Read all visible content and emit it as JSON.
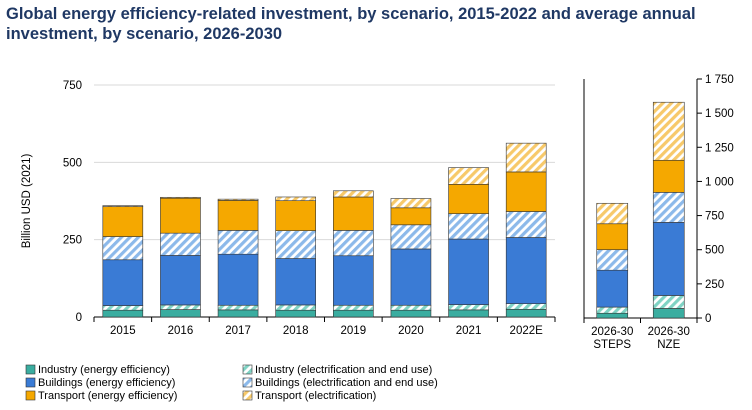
{
  "title": "Global energy efficiency-related investment, by scenario, 2015-2022 and average annual investment, by scenario, 2026-2030",
  "colors": {
    "industry_ee": "#3aada0",
    "industry_elec": "#7fd3c4",
    "buildings_ee": "#3a7bd5",
    "buildings_elec": "#8cb9ea",
    "transport_ee": "#f5a800",
    "transport_elec": "#f7c96a"
  },
  "chart_data": [
    {
      "type": "bar",
      "stacked": true,
      "ylabel": "Billion USD (2021)",
      "ylim": [
        0,
        750
      ],
      "yticks": [
        "0",
        "250",
        "500",
        "750"
      ],
      "grid": true,
      "categories": [
        "2015",
        "2016",
        "2017",
        "2018",
        "2019",
        "2020",
        "2021",
        "2022E"
      ],
      "series": [
        {
          "name": "Industry (energy efficiency)",
          "key": "industry_ee",
          "pattern": "solid",
          "values": [
            22,
            24,
            23,
            22,
            22,
            22,
            23,
            25
          ]
        },
        {
          "name": "Industry (electrification and end use)",
          "key": "industry_elec",
          "pattern": "hatch",
          "values": [
            15,
            15,
            15,
            17,
            16,
            16,
            17,
            18
          ]
        },
        {
          "name": "Buildings (energy efficiency)",
          "key": "buildings_ee",
          "pattern": "solid",
          "values": [
            148,
            160,
            165,
            150,
            160,
            182,
            212,
            214
          ]
        },
        {
          "name": "Buildings (electrification and end use)",
          "key": "buildings_elec",
          "pattern": "hatch",
          "values": [
            75,
            72,
            77,
            90,
            82,
            78,
            82,
            84
          ]
        },
        {
          "name": "Transport (energy efficiency)",
          "key": "transport_ee",
          "pattern": "solid",
          "values": [
            97,
            113,
            97,
            97,
            108,
            55,
            95,
            128
          ]
        },
        {
          "name": "Transport (electrification)",
          "key": "transport_elec",
          "pattern": "hatch",
          "values": [
            3,
            3,
            4,
            12,
            20,
            30,
            54,
            93
          ]
        }
      ]
    },
    {
      "type": "bar",
      "stacked": true,
      "ylim": [
        0,
        1750
      ],
      "yticks": [
        "0",
        "250",
        "500",
        "750",
        "1 000",
        "1 250",
        "1 500",
        "1 750"
      ],
      "grid": false,
      "categories": [
        [
          "2026-30",
          "STEPS"
        ],
        [
          "2026-30",
          "NZE"
        ]
      ],
      "series": [
        {
          "name": "Industry (energy efficiency)",
          "key": "industry_ee",
          "pattern": "solid",
          "values": [
            35,
            70
          ]
        },
        {
          "name": "Industry (electrification and end use)",
          "key": "industry_elec",
          "pattern": "hatch",
          "values": [
            45,
            95
          ]
        },
        {
          "name": "Buildings (energy efficiency)",
          "key": "buildings_ee",
          "pattern": "solid",
          "values": [
            270,
            535
          ]
        },
        {
          "name": "Buildings (electrification and end use)",
          "key": "buildings_elec",
          "pattern": "hatch",
          "values": [
            150,
            220
          ]
        },
        {
          "name": "Transport (energy efficiency)",
          "key": "transport_ee",
          "pattern": "solid",
          "values": [
            190,
            235
          ]
        },
        {
          "name": "Transport (electrification)",
          "key": "transport_elec",
          "pattern": "hatch",
          "values": [
            150,
            425
          ]
        }
      ]
    }
  ],
  "legend": {
    "placement": "bottom",
    "items": [
      {
        "label": "Industry (energy efficiency)",
        "key": "industry_ee",
        "pattern": "solid"
      },
      {
        "label": "Industry (electrification and end use)",
        "key": "industry_elec",
        "pattern": "hatch"
      },
      {
        "label": "Buildings (energy efficiency)",
        "key": "buildings_ee",
        "pattern": "solid"
      },
      {
        "label": "Buildings (electrification and end use)",
        "key": "buildings_elec",
        "pattern": "hatch"
      },
      {
        "label": "Transport (energy efficiency)",
        "key": "transport_ee",
        "pattern": "solid"
      },
      {
        "label": "Transport (electrification)",
        "key": "transport_elec",
        "pattern": "hatch"
      }
    ]
  }
}
